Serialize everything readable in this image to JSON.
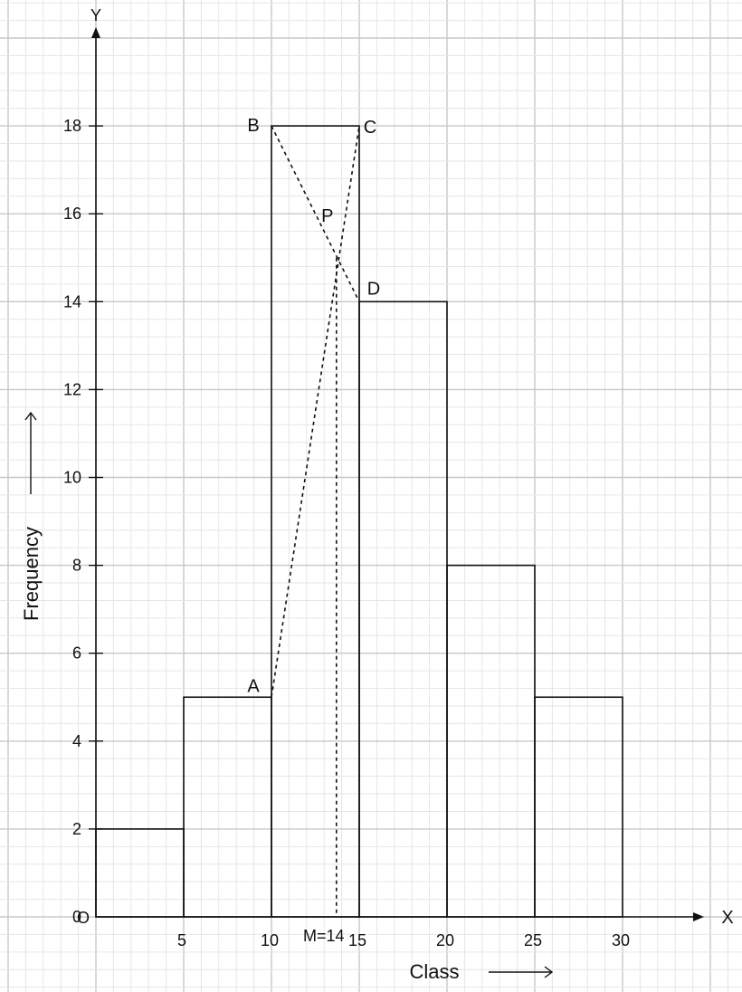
{
  "chart_data": {
    "type": "bar",
    "subtype": "histogram-mode-construction",
    "axes": {
      "x_name": "X",
      "y_name": "Y",
      "origin": "O",
      "xlabel": "Class",
      "ylabel": "Frequency",
      "xlim": [
        0,
        35
      ],
      "ylim": [
        0,
        20
      ],
      "x_ticks": [
        "5",
        "10",
        "15",
        "20",
        "25",
        "30"
      ],
      "y_ticks": [
        "0",
        "2",
        "4",
        "6",
        "8",
        "10",
        "12",
        "14",
        "16",
        "18"
      ],
      "grid": true
    },
    "bins": [
      {
        "from": 0,
        "to": 5,
        "value": 2
      },
      {
        "from": 5,
        "to": 10,
        "value": 5
      },
      {
        "from": 10,
        "to": 15,
        "value": 18
      },
      {
        "from": 15,
        "to": 20,
        "value": 14
      },
      {
        "from": 20,
        "to": 25,
        "value": 8
      },
      {
        "from": 25,
        "to": 30,
        "value": 5
      }
    ],
    "points": [
      {
        "label": "A",
        "x": 10,
        "y": 5
      },
      {
        "label": "B",
        "x": 10,
        "y": 18
      },
      {
        "label": "C",
        "x": 15,
        "y": 18
      },
      {
        "label": "D",
        "x": 15,
        "y": 14
      },
      {
        "label": "P",
        "x": 13.7,
        "y": 15
      }
    ],
    "construction_lines": [
      {
        "from": "A",
        "to": "C"
      },
      {
        "from": "B",
        "to": "D"
      }
    ],
    "mode_line": {
      "x": 13.7,
      "label": "M=14"
    }
  },
  "colors": {
    "grid_major": "#c8c8c8",
    "grid_minor": "#e6e6e6",
    "ink": "#111111"
  }
}
